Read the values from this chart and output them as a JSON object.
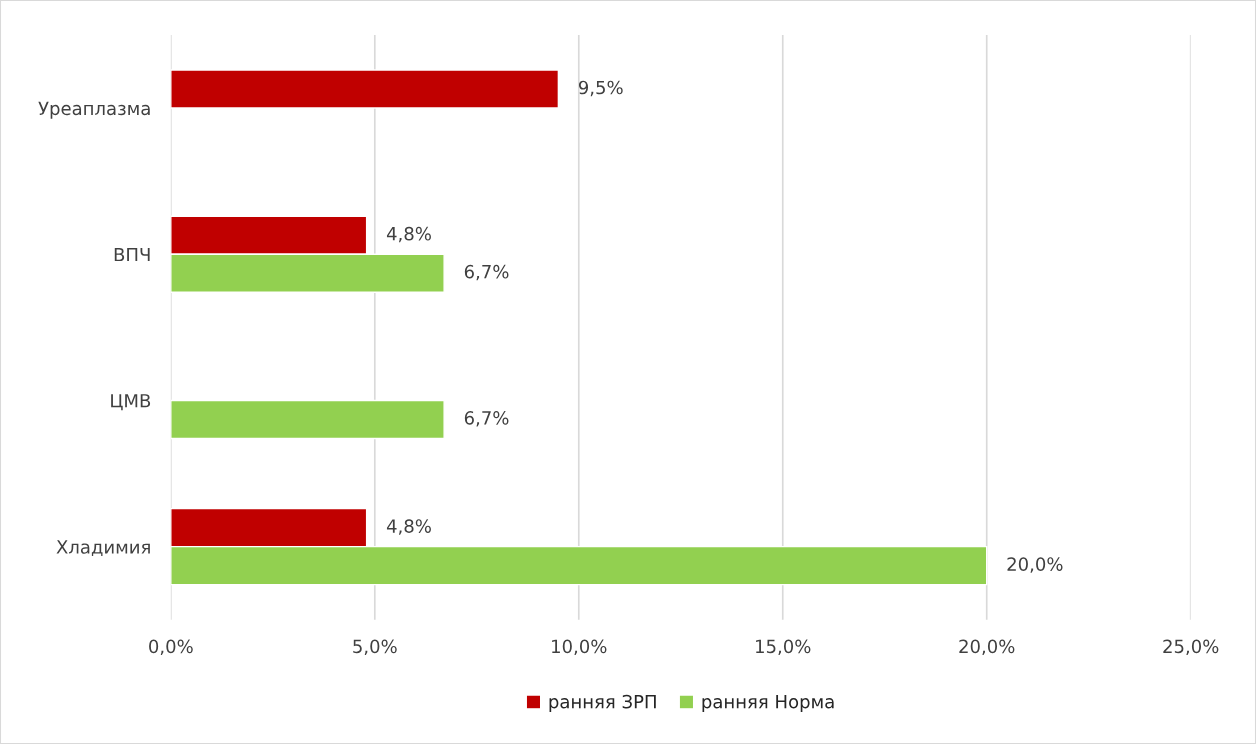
{
  "chart_data": {
    "type": "bar",
    "orientation": "horizontal",
    "categories": [
      "Уреаплазма",
      "ВПЧ",
      "ЦМВ",
      "Хладимия"
    ],
    "series": [
      {
        "name": "ранняя ЗРП",
        "color": "#c00000",
        "values": [
          9.5,
          4.8,
          null,
          4.8
        ],
        "value_labels": [
          "9,5%",
          "4,8%",
          null,
          "4,8%"
        ]
      },
      {
        "name": "ранняя Норма",
        "color": "#92d050",
        "values": [
          null,
          6.7,
          6.7,
          20.0
        ],
        "value_labels": [
          null,
          "6,7%",
          "6,7%",
          "20,0%"
        ]
      }
    ],
    "xlim": [
      0,
      25
    ],
    "xticks": [
      {
        "value": 0,
        "label": "0,0%"
      },
      {
        "value": 5,
        "label": "5,0%"
      },
      {
        "value": 10,
        "label": "10,0%"
      },
      {
        "value": 15,
        "label": "15,0%"
      },
      {
        "value": 20,
        "label": "20,0%"
      },
      {
        "value": 25,
        "label": "25,0%"
      }
    ],
    "grid": "x",
    "legend": "bottom"
  }
}
